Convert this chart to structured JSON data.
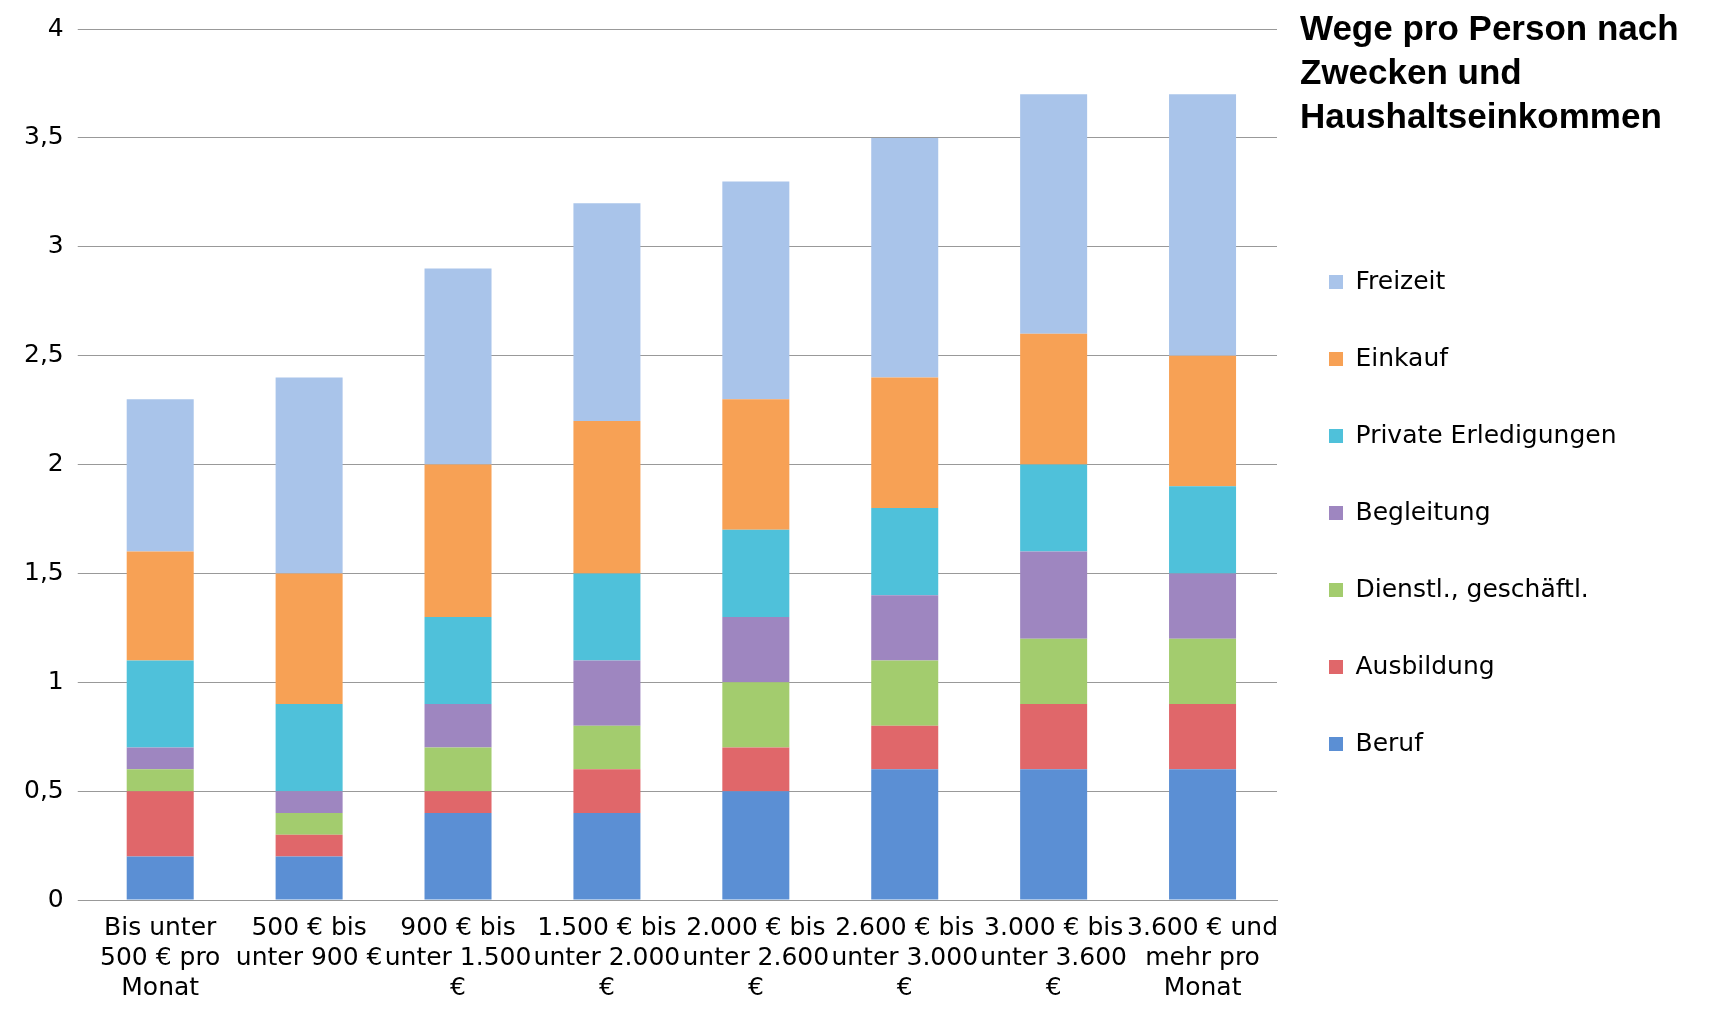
{
  "chart_data": {
    "type": "bar",
    "stacked": true,
    "title": "Wege pro Person nach Zwecken und Haushaltseinkommen",
    "categories": [
      "Bis unter 500 € pro Monat",
      "500 € bis unter 900 €",
      "900 € bis unter 1.500 €",
      "1.500 € bis unter 2.000 €",
      "2.000 € bis unter 2.600 €",
      "2.600 € bis unter 3.000 €",
      "3.000 € bis unter 3.600 €",
      "3.600 € und mehr pro Monat"
    ],
    "series": [
      {
        "name": "Beruf",
        "color": "#5b8fd4",
        "values": [
          0.2,
          0.2,
          0.4,
          0.4,
          0.5,
          0.6,
          0.6,
          0.6
        ]
      },
      {
        "name": "Ausbildung",
        "color": "#e0676a",
        "values": [
          0.3,
          0.1,
          0.1,
          0.2,
          0.2,
          0.2,
          0.3,
          0.3
        ]
      },
      {
        "name": "Dienstl., geschäftl.",
        "color": "#a3cc6e",
        "values": [
          0.1,
          0.1,
          0.2,
          0.2,
          0.3,
          0.3,
          0.3,
          0.3
        ]
      },
      {
        "name": "Begleitung",
        "color": "#9e86c0",
        "values": [
          0.1,
          0.1,
          0.2,
          0.3,
          0.3,
          0.3,
          0.4,
          0.3
        ]
      },
      {
        "name": "Private Erledigungen",
        "color": "#4fc1da",
        "values": [
          0.4,
          0.4,
          0.4,
          0.4,
          0.4,
          0.4,
          0.4,
          0.4
        ]
      },
      {
        "name": "Einkauf",
        "color": "#f7a155",
        "values": [
          0.5,
          0.6,
          0.7,
          0.7,
          0.6,
          0.6,
          0.6,
          0.6
        ]
      },
      {
        "name": "Freizeit",
        "color": "#a9c4ea",
        "values": [
          0.7,
          0.9,
          0.9,
          1.0,
          1.0,
          1.1,
          1.1,
          1.2
        ]
      }
    ],
    "ylim": [
      0,
      4
    ],
    "yticks": [
      {
        "value": 0,
        "label": "0"
      },
      {
        "value": 0.5,
        "label": "0,5"
      },
      {
        "value": 1,
        "label": "1"
      },
      {
        "value": 1.5,
        "label": "1,5"
      },
      {
        "value": 2,
        "label": "2"
      },
      {
        "value": 2.5,
        "label": "2,5"
      },
      {
        "value": 3,
        "label": "3"
      },
      {
        "value": 3.5,
        "label": "3,5"
      },
      {
        "value": 4,
        "label": "4"
      }
    ],
    "grid": "y",
    "legend": "right"
  }
}
